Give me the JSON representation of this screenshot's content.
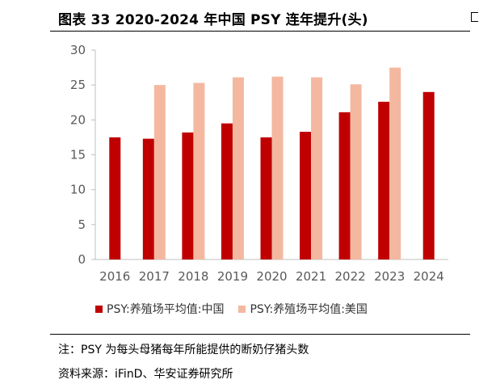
{
  "title": "图表 33 2020-2024 年中国 PSY  连年提升(头)",
  "note": "注：PSY 为每头母猪每年所能提供的断奶仔猪头数",
  "source": "资料来源：iFinD、华安证券研究所",
  "chart_data": {
    "type": "bar",
    "categories": [
      "2016",
      "2017",
      "2018",
      "2019",
      "2020",
      "2021",
      "2022",
      "2023",
      "2024"
    ],
    "series": [
      {
        "name": "PSY:养殖场平均值:中国",
        "color": "#c00000",
        "values": [
          17.5,
          17.3,
          18.2,
          19.5,
          17.5,
          18.3,
          21.1,
          22.6,
          24.0
        ]
      },
      {
        "name": "PSY:养殖场平均值:美国",
        "color": "#f4b8a0",
        "values": [
          null,
          25.0,
          25.3,
          26.1,
          26.2,
          26.1,
          25.1,
          27.5,
          null
        ]
      }
    ],
    "ylim": [
      0,
      30
    ],
    "yticks": [
      0,
      5,
      10,
      15,
      20,
      25,
      30
    ],
    "xlabel": "",
    "ylabel": "",
    "grid": false,
    "legend_position": "bottom"
  }
}
